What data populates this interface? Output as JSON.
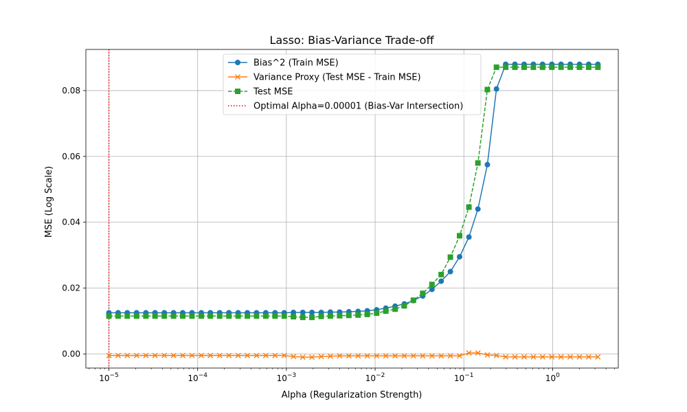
{
  "chart_data": {
    "type": "line",
    "title": "Lasso: Bias-Variance Trade-off",
    "xlabel": "Alpha (Regularization Strength)",
    "ylabel": "MSE (Log Scale)",
    "x_scale": "log",
    "xlim": [
      5.5e-06,
      5.5
    ],
    "ylim": [
      -0.0043,
      0.0925
    ],
    "grid": true,
    "legend_position": "upper center",
    "x_ticks": [
      {
        "value": 1e-05,
        "base": "10",
        "exp": "−5"
      },
      {
        "value": 0.0001,
        "base": "10",
        "exp": "−4"
      },
      {
        "value": 0.001,
        "base": "10",
        "exp": "−3"
      },
      {
        "value": 0.01,
        "base": "10",
        "exp": "−2"
      },
      {
        "value": 0.1,
        "base": "10",
        "exp": "−1"
      },
      {
        "value": 1,
        "base": "10",
        "exp": "0"
      }
    ],
    "y_ticks": [
      {
        "value": 0.0,
        "label": "0.00"
      },
      {
        "value": 0.02,
        "label": "0.02"
      },
      {
        "value": 0.04,
        "label": "0.04"
      },
      {
        "value": 0.06,
        "label": "0.06"
      },
      {
        "value": 0.08,
        "label": "0.08"
      }
    ],
    "alphas": [
      1e-05,
      1.27e-05,
      1.61e-05,
      2.05e-05,
      2.61e-05,
      3.31e-05,
      4.21e-05,
      5.35e-05,
      6.79e-05,
      8.63e-05,
      0.00011,
      0.000139,
      0.000177,
      0.000225,
      0.000286,
      0.000363,
      0.000461,
      0.000586,
      0.000745,
      0.000946,
      0.0012,
      0.00153,
      0.00194,
      0.00247,
      0.00313,
      0.00398,
      0.00506,
      0.00643,
      0.00816,
      0.0104,
      0.0132,
      0.0168,
      0.0213,
      0.027,
      0.0344,
      0.0437,
      0.0555,
      0.0705,
      0.0895,
      0.114,
      0.144,
      0.184,
      0.233,
      0.296,
      0.376,
      0.478,
      0.607,
      0.771,
      0.98,
      1.245,
      1.58,
      2.01,
      2.55,
      3.24
    ],
    "series": [
      {
        "name": "Bias^2 (Train MSE)",
        "color": "#1f77b4",
        "marker": "circle",
        "linestyle": "solid",
        "values": [
          0.0125,
          0.0125,
          0.0125,
          0.0125,
          0.0125,
          0.0125,
          0.0125,
          0.0125,
          0.0125,
          0.0125,
          0.0125,
          0.0125,
          0.0125,
          0.0125,
          0.0125,
          0.0125,
          0.0125,
          0.0125,
          0.0125,
          0.0125,
          0.0126,
          0.0126,
          0.0126,
          0.0126,
          0.0127,
          0.0127,
          0.0128,
          0.0129,
          0.0131,
          0.0134,
          0.0139,
          0.0145,
          0.0152,
          0.0162,
          0.0176,
          0.0196,
          0.0221,
          0.025,
          0.0295,
          0.0355,
          0.044,
          0.0575,
          0.0805,
          0.088,
          0.088,
          0.088,
          0.088,
          0.088,
          0.088,
          0.088,
          0.088,
          0.088,
          0.088,
          0.088
        ]
      },
      {
        "name": "Variance Proxy (Test MSE - Train MSE)",
        "color": "#ff7f0e",
        "marker": "x",
        "linestyle": "solid",
        "values": [
          -0.0005,
          -0.0005,
          -0.0005,
          -0.0005,
          -0.0005,
          -0.0005,
          -0.0005,
          -0.0005,
          -0.0005,
          -0.0005,
          -0.0005,
          -0.0005,
          -0.0005,
          -0.0005,
          -0.0005,
          -0.0005,
          -0.0005,
          -0.0005,
          -0.0005,
          -0.0005,
          -0.0008,
          -0.001,
          -0.001,
          -0.0008,
          -0.0007,
          -0.0006,
          -0.0006,
          -0.0006,
          -0.0006,
          -0.0006,
          -0.0006,
          -0.0006,
          -0.0006,
          -0.0006,
          -0.0006,
          -0.0006,
          -0.0006,
          -0.0006,
          -0.0006,
          0.0003,
          0.0003,
          -0.0003,
          -0.0005,
          -0.0009,
          -0.0009,
          -0.0009,
          -0.0009,
          -0.0009,
          -0.0009,
          -0.0009,
          -0.0009,
          -0.0009,
          -0.0009,
          -0.0009
        ]
      },
      {
        "name": "Test MSE",
        "color": "#2ca02c",
        "marker": "square",
        "linestyle": "dashed",
        "values": [
          0.0115,
          0.0115,
          0.0115,
          0.0115,
          0.0115,
          0.0115,
          0.0115,
          0.0115,
          0.0115,
          0.0115,
          0.0115,
          0.0115,
          0.0115,
          0.0115,
          0.0115,
          0.0115,
          0.0115,
          0.0115,
          0.0115,
          0.0115,
          0.0113,
          0.0111,
          0.0111,
          0.0114,
          0.0115,
          0.0116,
          0.0117,
          0.0118,
          0.012,
          0.0124,
          0.013,
          0.0136,
          0.0146,
          0.0163,
          0.0184,
          0.0211,
          0.0241,
          0.0294,
          0.0359,
          0.0446,
          0.058,
          0.0803,
          0.0871,
          0.0871,
          0.0871,
          0.0871,
          0.0871,
          0.0871,
          0.0871,
          0.0871,
          0.0871,
          0.0871,
          0.0871,
          0.0871
        ]
      }
    ],
    "vline": {
      "x": 1e-05,
      "name": "Optimal Alpha=0.00001 (Bias-Var Intersection)",
      "color": "#ff0000",
      "linestyle": "dotted"
    }
  }
}
